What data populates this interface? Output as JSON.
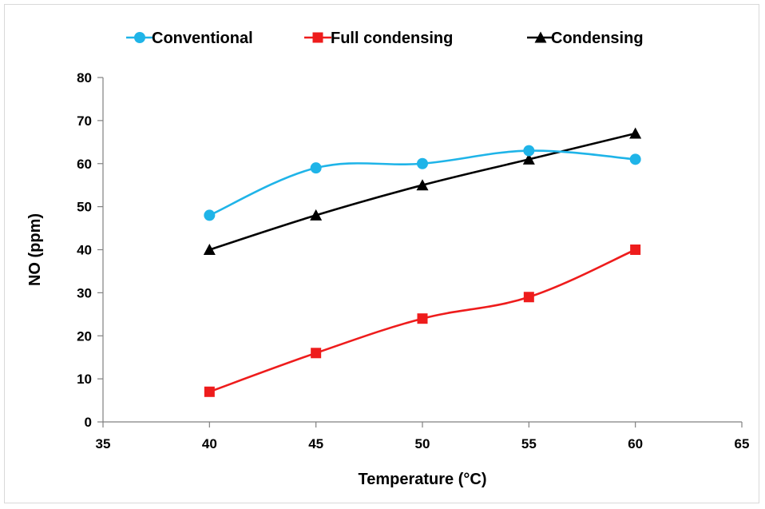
{
  "chart_data": {
    "type": "line",
    "xlabel": "Temperature (°C)",
    "ylabel": "NO (ppm)",
    "xlim": [
      35,
      65
    ],
    "ylim": [
      0,
      80
    ],
    "xticks": [
      "35",
      "40",
      "45",
      "50",
      "55",
      "60",
      "65"
    ],
    "yticks": [
      "0",
      "10",
      "20",
      "30",
      "40",
      "50",
      "60",
      "70",
      "80"
    ],
    "grid": false,
    "legend_position": "top",
    "smooth_lines": true,
    "series": [
      {
        "name": "Conventional",
        "color": "#1fb4e8",
        "marker": "circle",
        "x": [
          40,
          45,
          50,
          55,
          60
        ],
        "y": [
          48,
          59,
          60,
          63,
          61
        ]
      },
      {
        "name": "Full condensing",
        "color": "#ee1c1c",
        "marker": "square",
        "x": [
          40,
          45,
          50,
          55,
          60
        ],
        "y": [
          7,
          16,
          24,
          29,
          40
        ]
      },
      {
        "name": "Condensing",
        "color": "#000000",
        "marker": "triangle",
        "x": [
          40,
          45,
          50,
          55,
          60
        ],
        "y": [
          40,
          48,
          55,
          61,
          67
        ]
      }
    ]
  }
}
